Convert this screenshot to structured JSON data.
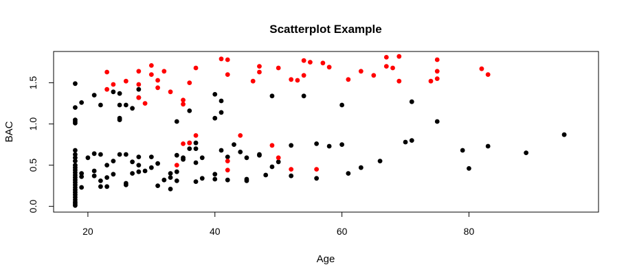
{
  "chart_data": {
    "type": "scatter",
    "title": "Scatterplot Example",
    "xlabel": "Age",
    "ylabel": "BAC",
    "xlim": [
      14.6,
      100.4
    ],
    "ylim": [
      -0.07,
      1.88
    ],
    "x_ticks": [
      20,
      40,
      60,
      80
    ],
    "y_ticks": [
      0.0,
      0.5,
      1.0,
      1.5
    ],
    "x_tick_labels": [
      "20",
      "40",
      "60",
      "80"
    ],
    "y_tick_labels": [
      "0.0",
      "0.5",
      "1.0",
      "1.5"
    ],
    "grid": false,
    "legend": "none",
    "colors": {
      "black_series": "#000000",
      "red_series": "#ff0000"
    },
    "series": [
      {
        "color": "#000000",
        "points": [
          [
            18,
            1.49
          ],
          [
            18,
            1.2
          ],
          [
            18,
            1.05
          ],
          [
            18,
            1.03
          ],
          [
            18,
            1.01
          ],
          [
            18,
            0.68
          ],
          [
            18,
            0.63
          ],
          [
            18,
            0.59
          ],
          [
            18,
            0.55
          ],
          [
            18,
            0.5
          ],
          [
            18,
            0.47
          ],
          [
            18,
            0.44
          ],
          [
            18,
            0.41
          ],
          [
            18,
            0.38
          ],
          [
            18,
            0.35
          ],
          [
            18,
            0.32
          ],
          [
            18,
            0.29
          ],
          [
            18,
            0.26
          ],
          [
            18,
            0.23
          ],
          [
            18,
            0.2
          ],
          [
            18,
            0.17
          ],
          [
            18,
            0.14
          ],
          [
            18,
            0.11
          ],
          [
            18,
            0.08
          ],
          [
            18,
            0.05
          ],
          [
            18,
            0.03
          ],
          [
            18,
            0.01
          ],
          [
            19,
            1.26
          ],
          [
            19,
            0.4
          ],
          [
            19,
            0.36
          ],
          [
            19,
            0.23
          ],
          [
            20,
            0.59
          ],
          [
            21,
            1.35
          ],
          [
            21,
            0.64
          ],
          [
            21,
            0.43
          ],
          [
            21,
            0.37
          ],
          [
            22,
            1.23
          ],
          [
            22,
            0.63
          ],
          [
            22,
            0.31
          ],
          [
            22,
            0.24
          ],
          [
            23,
            0.5
          ],
          [
            23,
            0.24
          ],
          [
            23,
            0.35
          ],
          [
            24,
            1.39
          ],
          [
            24,
            0.55
          ],
          [
            24,
            0.39
          ],
          [
            25,
            1.37
          ],
          [
            25,
            1.23
          ],
          [
            25,
            1.07
          ],
          [
            25,
            1.05
          ],
          [
            25,
            0.63
          ],
          [
            26,
            1.23
          ],
          [
            26,
            0.63
          ],
          [
            26,
            0.28
          ],
          [
            26,
            0.26
          ],
          [
            27,
            1.19
          ],
          [
            27,
            0.54
          ],
          [
            27,
            0.4
          ],
          [
            28,
            1.42
          ],
          [
            28,
            1.32
          ],
          [
            28,
            0.6
          ],
          [
            28,
            0.5
          ],
          [
            28,
            0.42
          ],
          [
            29,
            0.43
          ],
          [
            30,
            0.6
          ],
          [
            30,
            0.47
          ],
          [
            31,
            0.52
          ],
          [
            31,
            0.25
          ],
          [
            32,
            0.32
          ],
          [
            33,
            0.4
          ],
          [
            33,
            0.35
          ],
          [
            33,
            0.21
          ],
          [
            34,
            1.03
          ],
          [
            34,
            0.62
          ],
          [
            34,
            0.42
          ],
          [
            34,
            0.31
          ],
          [
            35,
            0.59
          ],
          [
            35,
            0.57
          ],
          [
            36,
            1.16
          ],
          [
            36,
            0.77
          ],
          [
            36,
            0.7
          ],
          [
            37,
            0.77
          ],
          [
            37,
            0.7
          ],
          [
            37,
            0.53
          ],
          [
            37,
            0.3
          ],
          [
            38,
            0.59
          ],
          [
            38,
            0.34
          ],
          [
            40,
            1.36
          ],
          [
            40,
            1.07
          ],
          [
            40,
            0.39
          ],
          [
            40,
            0.33
          ],
          [
            41,
            1.28
          ],
          [
            41,
            1.14
          ],
          [
            41,
            0.68
          ],
          [
            42,
            0.6
          ],
          [
            42,
            0.32
          ],
          [
            43,
            0.75
          ],
          [
            44,
            0.66
          ],
          [
            45,
            0.59
          ],
          [
            45,
            0.33
          ],
          [
            45,
            0.31
          ],
          [
            47,
            0.63
          ],
          [
            47,
            0.62
          ],
          [
            48,
            0.38
          ],
          [
            49,
            1.34
          ],
          [
            49,
            0.48
          ],
          [
            50,
            0.54
          ],
          [
            52,
            0.74
          ],
          [
            52,
            0.37
          ],
          [
            54,
            1.34
          ],
          [
            56,
            0.76
          ],
          [
            56,
            0.34
          ],
          [
            58,
            0.73
          ],
          [
            60,
            1.23
          ],
          [
            60,
            0.75
          ],
          [
            61,
            0.4
          ],
          [
            63,
            0.47
          ],
          [
            66,
            0.55
          ],
          [
            70,
            0.78
          ],
          [
            71,
            1.27
          ],
          [
            71,
            0.8
          ],
          [
            75,
            1.03
          ],
          [
            79,
            0.68
          ],
          [
            80,
            0.46
          ],
          [
            83,
            0.73
          ],
          [
            89,
            0.65
          ],
          [
            95,
            0.87
          ]
        ]
      },
      {
        "color": "#ff0000",
        "points": [
          [
            23,
            1.63
          ],
          [
            23,
            1.42
          ],
          [
            24,
            1.48
          ],
          [
            26,
            1.52
          ],
          [
            28,
            1.64
          ],
          [
            28,
            1.48
          ],
          [
            28,
            1.32
          ],
          [
            29,
            1.25
          ],
          [
            30,
            1.71
          ],
          [
            30,
            1.6
          ],
          [
            31,
            1.53
          ],
          [
            31,
            1.44
          ],
          [
            32,
            1.64
          ],
          [
            33,
            1.39
          ],
          [
            34,
            0.5
          ],
          [
            35,
            1.29
          ],
          [
            35,
            1.24
          ],
          [
            35,
            0.76
          ],
          [
            36,
            1.5
          ],
          [
            36,
            0.77
          ],
          [
            37,
            1.68
          ],
          [
            37,
            0.86
          ],
          [
            41,
            1.79
          ],
          [
            42,
            1.78
          ],
          [
            42,
            1.6
          ],
          [
            42,
            0.55
          ],
          [
            42,
            0.44
          ],
          [
            44,
            0.86
          ],
          [
            46,
            1.52
          ],
          [
            47,
            1.7
          ],
          [
            47,
            1.63
          ],
          [
            49,
            0.74
          ],
          [
            50,
            1.68
          ],
          [
            50,
            0.59
          ],
          [
            52,
            1.54
          ],
          [
            52,
            0.45
          ],
          [
            53,
            1.53
          ],
          [
            54,
            1.77
          ],
          [
            54,
            1.59
          ],
          [
            55,
            1.75
          ],
          [
            56,
            0.45
          ],
          [
            57,
            1.74
          ],
          [
            58,
            1.69
          ],
          [
            61,
            1.54
          ],
          [
            63,
            1.64
          ],
          [
            65,
            1.59
          ],
          [
            67,
            1.81
          ],
          [
            67,
            1.7
          ],
          [
            68,
            1.68
          ],
          [
            69,
            1.82
          ],
          [
            69,
            1.52
          ],
          [
            74,
            1.52
          ],
          [
            75,
            1.78
          ],
          [
            75,
            1.64
          ],
          [
            75,
            1.55
          ],
          [
            82,
            1.67
          ],
          [
            83,
            1.6
          ]
        ]
      }
    ]
  }
}
